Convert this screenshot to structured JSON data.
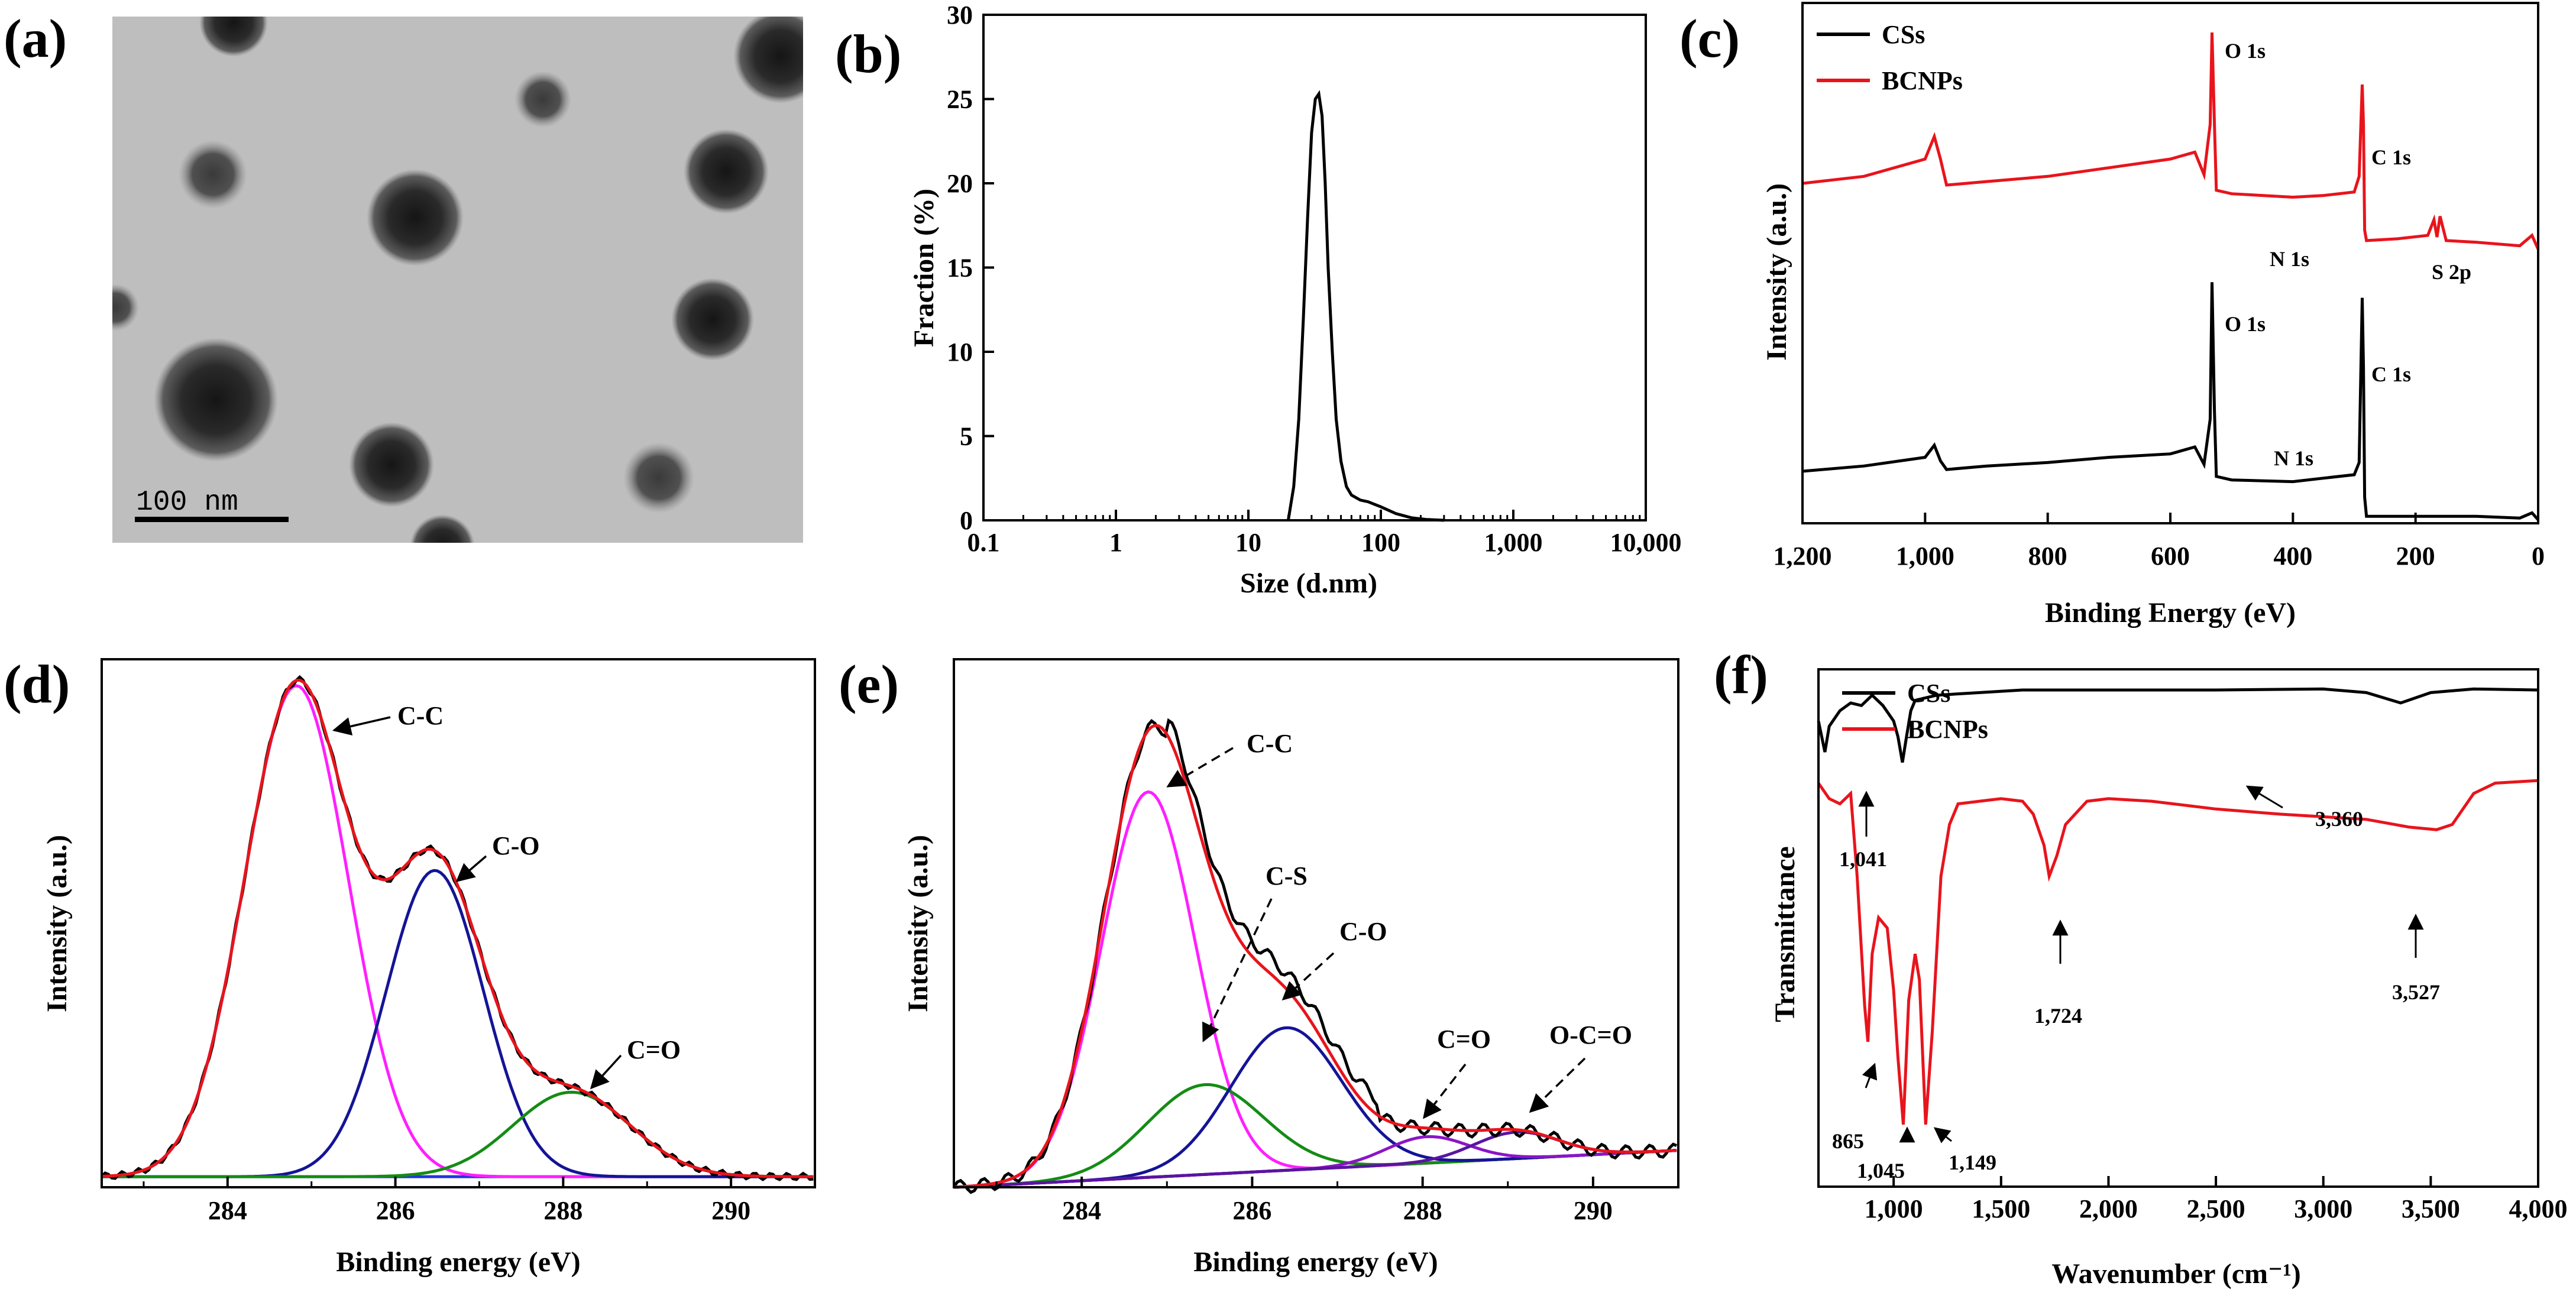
{
  "colors": {
    "black": "#000000",
    "red": "#e8141c",
    "magenta": "#ff1fff",
    "navy": "#141497",
    "green": "#148c14",
    "purple": "#8c14c8",
    "violet": "#5a14a0",
    "blue": "#1f36e0"
  },
  "chart_data": [
    {
      "panel": "(a)",
      "type": "other",
      "description_label": "TEM micrograph",
      "scale_bar": "100 nm"
    },
    {
      "panel": "(b)",
      "type": "line",
      "xlabel": "Size (d.nm)",
      "ylabel": "Fraction (%)",
      "xscale": "log",
      "xlim": [
        0.1,
        10000
      ],
      "ylim": [
        0,
        30
      ],
      "xticks": [
        0.1,
        1,
        10,
        100,
        1000,
        10000
      ],
      "xtick_labels": [
        "0.1",
        "1",
        "10",
        "100",
        "1,000",
        "10,000"
      ],
      "yticks": [
        0,
        5,
        10,
        15,
        20,
        25,
        30
      ],
      "ytick_labels": [
        "0",
        "5",
        "10",
        "15",
        "20",
        "25",
        "30"
      ],
      "x": [
        20,
        22,
        24,
        26,
        28,
        30,
        32,
        34,
        36,
        38,
        40,
        43,
        46,
        50,
        55,
        60,
        70,
        80,
        100,
        130,
        170,
        220,
        300
      ],
      "y": [
        0,
        2,
        6,
        12,
        18,
        23,
        25,
        25.3,
        24,
        20,
        15,
        10,
        6,
        3.5,
        2,
        1.5,
        1.2,
        1.1,
        0.8,
        0.4,
        0.15,
        0.05,
        0
      ]
    },
    {
      "panel": "(c)",
      "type": "line",
      "xlabel": "Binding Energy (eV)",
      "ylabel": "Intensity (a.u.)",
      "xlim": [
        1200,
        0
      ],
      "xticks": [
        1200,
        1000,
        800,
        600,
        400,
        200,
        0
      ],
      "xtick_labels": [
        "1,200",
        "1,000",
        "800",
        "600",
        "400",
        "200",
        "0"
      ],
      "legend": [
        {
          "name": "CSs",
          "color": "#000000"
        },
        {
          "name": "BCNPs",
          "color": "#e8141c"
        }
      ],
      "series": [
        {
          "name": "CSs",
          "x": [
            1200,
            1100,
            1000,
            985,
            975,
            965,
            900,
            800,
            700,
            600,
            560,
            545,
            535,
            532,
            528,
            525,
            500,
            400,
            350,
            300,
            292,
            287,
            285,
            283,
            280,
            200,
            100,
            30,
            10,
            0
          ],
          "y": [
            3.0,
            3.3,
            3.8,
            4.5,
            3.6,
            3.1,
            3.3,
            3.5,
            3.8,
            4.0,
            4.4,
            3.4,
            6.0,
            13.9,
            6.5,
            2.7,
            2.5,
            2.4,
            2.6,
            2.8,
            3.5,
            13.0,
            9.0,
            1.5,
            0.4,
            0.4,
            0.4,
            0.3,
            0.6,
            0.2
          ]
        },
        {
          "name": "BCNPs",
          "x": [
            1200,
            1100,
            1000,
            985,
            975,
            965,
            900,
            800,
            700,
            600,
            560,
            545,
            535,
            532,
            528,
            525,
            500,
            400,
            350,
            300,
            292,
            287,
            285,
            283,
            280,
            230,
            180,
            170,
            165,
            160,
            150,
            100,
            30,
            10,
            0
          ],
          "y": [
            19.6,
            20.0,
            21.0,
            22.3,
            21.0,
            19.5,
            19.7,
            20.0,
            20.5,
            21.0,
            21.4,
            20.1,
            23.0,
            28.3,
            23.0,
            19.2,
            19.0,
            18.8,
            18.9,
            19.1,
            20.0,
            25.3,
            23.0,
            16.9,
            16.3,
            16.4,
            16.6,
            17.5,
            16.5,
            17.7,
            16.3,
            16.2,
            16.0,
            16.6,
            15.8
          ]
        }
      ],
      "annotations": [
        "O 1s",
        "C 1s",
        "N 1s",
        "S 2p",
        "O 1s",
        "C 1s",
        "N 1s"
      ]
    },
    {
      "panel": "(d)",
      "type": "line",
      "xlabel": "Binding energy (eV)",
      "ylabel": "Intensity (a.u.)",
      "xlim": [
        282.5,
        291
      ],
      "xticks": [
        284,
        286,
        288,
        290
      ],
      "xtick_labels": [
        "284",
        "286",
        "288",
        "290"
      ],
      "baseline": 0.02,
      "components": [
        {
          "name": "C-C",
          "center": 284.82,
          "amplitude": 0.93,
          "sigma": 0.62,
          "color": "#ff1fff"
        },
        {
          "name": "C-O",
          "center": 286.47,
          "amplitude": 0.58,
          "sigma": 0.58,
          "color": "#141497"
        },
        {
          "name": "C=O",
          "center": 288.1,
          "amplitude": 0.16,
          "sigma": 0.7,
          "color": "#148c14"
        }
      ],
      "envelope_colors": [
        "#000000",
        "#e8141c"
      ],
      "annotations": [
        "C-C",
        "C-O",
        "C=O"
      ]
    },
    {
      "panel": "(e)",
      "type": "line",
      "xlabel": "Binding energy (eV)",
      "ylabel": "Intensity (a.u.)",
      "xlim": [
        282.5,
        291
      ],
      "xticks": [
        284,
        286,
        288,
        290
      ],
      "xtick_labels": [
        "284",
        "286",
        "288",
        "290"
      ],
      "baseline_range": [
        0.0,
        0.07
      ],
      "components": [
        {
          "name": "C-C",
          "center": 284.78,
          "amplitude": 0.73,
          "sigma": 0.55,
          "color": "#ff1fff"
        },
        {
          "name": "C-S",
          "center": 285.45,
          "amplitude": 0.17,
          "sigma": 0.68,
          "color": "#148c14"
        },
        {
          "name": "C-O",
          "center": 286.4,
          "amplitude": 0.27,
          "sigma": 0.65,
          "color": "#141497"
        },
        {
          "name": "C=O",
          "center": 288.05,
          "amplitude": 0.05,
          "sigma": 0.48,
          "color": "#8c14c8"
        },
        {
          "name": "O-C=O",
          "center": 289.1,
          "amplitude": 0.05,
          "sigma": 0.5,
          "color": "#5a14a0"
        }
      ],
      "envelope_colors": [
        "#000000",
        "#e8141c"
      ],
      "annotations": [
        "C-C",
        "C-S",
        "C-O",
        "C=O",
        "O-C=O"
      ]
    },
    {
      "panel": "(f)",
      "type": "line",
      "xlabel": "Wavenumber (cm⁻¹)",
      "ylabel": "Transmittance",
      "xlim": [
        650,
        4000
      ],
      "xticks": [
        1000,
        1500,
        2000,
        2500,
        3000,
        3500,
        4000
      ],
      "xtick_labels": [
        "1,000",
        "1,500",
        "2,000",
        "2,500",
        "3,000",
        "3,500",
        "4,000"
      ],
      "legend": [
        {
          "name": "CSs",
          "color": "#000000"
        },
        {
          "name": "BCNPs",
          "color": "#e8141c"
        }
      ],
      "series": [
        {
          "name": "CSs",
          "x": [
            650,
            680,
            700,
            750,
            800,
            850,
            900,
            950,
            1000,
            1020,
            1041,
            1060,
            1080,
            1100,
            1200,
            1400,
            1600,
            2000,
            2500,
            3000,
            3200,
            3360,
            3500,
            3700,
            4000
          ],
          "y": [
            0.9,
            0.84,
            0.89,
            0.92,
            0.935,
            0.93,
            0.95,
            0.93,
            0.9,
            0.87,
            0.82,
            0.87,
            0.92,
            0.94,
            0.95,
            0.955,
            0.96,
            0.96,
            0.96,
            0.962,
            0.955,
            0.935,
            0.955,
            0.962,
            0.96
          ]
        },
        {
          "name": "BCNPs",
          "x": [
            650,
            700,
            750,
            800,
            830,
            865,
            880,
            900,
            930,
            970,
            1000,
            1020,
            1045,
            1070,
            1100,
            1120,
            1149,
            1180,
            1220,
            1260,
            1300,
            1400,
            1500,
            1600,
            1650,
            1700,
            1724,
            1760,
            1800,
            1900,
            2000,
            2200,
            2500,
            2800,
            3000,
            3200,
            3400,
            3527,
            3600,
            3700,
            3800,
            4000
          ],
          "y": [
            0.78,
            0.75,
            0.74,
            0.76,
            0.6,
            0.35,
            0.28,
            0.45,
            0.52,
            0.5,
            0.38,
            0.25,
            0.12,
            0.36,
            0.45,
            0.4,
            0.12,
            0.3,
            0.6,
            0.7,
            0.74,
            0.745,
            0.75,
            0.745,
            0.72,
            0.66,
            0.6,
            0.64,
            0.7,
            0.745,
            0.75,
            0.745,
            0.73,
            0.72,
            0.715,
            0.71,
            0.695,
            0.69,
            0.7,
            0.76,
            0.78,
            0.785
          ]
        }
      ],
      "annotations": [
        "3,360",
        "1,041",
        "1,724",
        "3,527",
        "865",
        "1,045",
        "1,149"
      ]
    }
  ],
  "labels": {
    "a": "(a)",
    "b": "(b)",
    "c": "(c)",
    "d": "(d)",
    "e": "(e)",
    "f": "(f)",
    "scale_bar": "100 nm",
    "b_xlabel": "Size (d.nm)",
    "b_ylabel": "Fraction (%)",
    "c_xlabel": "Binding Energy (eV)",
    "c_ylabel": "Intensity (a.u.)",
    "c_leg1": "CSs",
    "c_leg2": "BCNPs",
    "c_o1s_red": "O 1s",
    "c_c1s_red": "C 1s",
    "c_n1s_red": "N 1s",
    "c_s2p": "S 2p",
    "c_o1s_blk": "O 1s",
    "c_c1s_blk": "C 1s",
    "c_n1s_blk": "N 1s",
    "d_xlabel": "Binding energy (eV)",
    "d_ylabel": "Intensity (a.u.)",
    "d_cc": "C-C",
    "d_co": "C-O",
    "d_c2o": "C=O",
    "e_xlabel": "Binding energy (eV)",
    "e_ylabel": "Intensity (a.u.)",
    "e_cc": "C-C",
    "e_cs": "C-S",
    "e_co": "C-O",
    "e_c2o": "C=O",
    "e_occo": "O-C=O",
    "f_xlabel": "Wavenumber (cm⁻¹)",
    "f_ylabel": "Transmittance",
    "f_leg1": "CSs",
    "f_leg2": "BCNPs",
    "f_3360": "3,360",
    "f_1041": "1,041",
    "f_1724": "1,724",
    "f_3527": "3,527",
    "f_865": "865",
    "f_1045": "1,045",
    "f_1149": "1,149"
  }
}
